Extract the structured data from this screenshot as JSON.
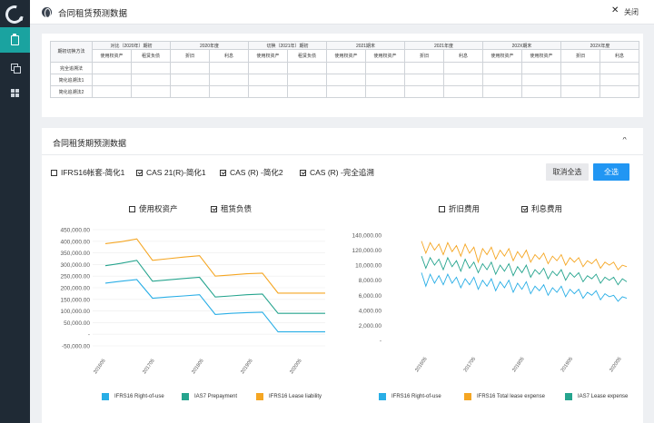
{
  "header": {
    "title": "合同租赁预测数据",
    "close_label": "关闭"
  },
  "sidebar": {
    "items": [
      {
        "icon": "clipboard-icon",
        "active": true
      },
      {
        "icon": "copy-icon"
      },
      {
        "icon": "grid-icon"
      }
    ]
  },
  "table": {
    "corner": "期初切换方法",
    "groups": [
      "对比（2020年）期初",
      "2020年度",
      "切换（2021年）期初",
      "2021期末",
      "2021年度",
      "202X期末",
      "202X年度"
    ],
    "subheaders": [
      "使用权资产",
      "租赁负债",
      "折旧",
      "利息",
      "使用权资产",
      "租赁负债",
      "使用权资产",
      "使用权资产",
      "折旧",
      "利息",
      "使用权资产",
      "使用权资产",
      "折旧",
      "利息"
    ],
    "rows": [
      "完全追溯法",
      "简化追溯法1",
      "简化追溯法2"
    ]
  },
  "section": {
    "title": "合同租赁期预测数据"
  },
  "filters": [
    {
      "label": "IFRS16帐套-简化1",
      "checked": false
    },
    {
      "label": "CAS 21(R)-简化1",
      "checked": true
    },
    {
      "label": "CAS (R) -简化2",
      "checked": true
    },
    {
      "label": "CAS (R) -完全追溯",
      "checked": true
    }
  ],
  "buttons": {
    "cancel_all": "取消全选",
    "select_all": "全选"
  },
  "left_toggles": [
    {
      "label": "使用权资产",
      "checked": false
    },
    {
      "label": "租赁负债",
      "checked": true
    }
  ],
  "right_toggles": [
    {
      "label": "折旧费用",
      "checked": false
    },
    {
      "label": "利息费用",
      "checked": true
    }
  ],
  "chart_data": [
    {
      "type": "line",
      "title": "",
      "yticks": [
        "450,000.00",
        "400,000.00",
        "350,000.00",
        "300,000.00",
        "250,000.00",
        "200,000.00",
        "150,000.00",
        "100,000.00",
        "50,000.00",
        "-",
        "-50,000.00"
      ],
      "ylim": [
        -50000,
        450000
      ],
      "xticks": [
        "201605",
        "201705",
        "201805",
        "201905",
        "202005"
      ],
      "series": [
        {
          "name": "IFRS16 Right-of-use",
          "color": "#29aee6",
          "values": [
            220000,
            228000,
            235000,
            155000,
            160000,
            165000,
            170000,
            85000,
            90000,
            93000,
            95000,
            10000,
            10000,
            10000,
            10000
          ]
        },
        {
          "name": "IAS7 Prepayment",
          "color": "#26a48e",
          "values": [
            295000,
            305000,
            318000,
            228000,
            234000,
            240000,
            245000,
            160000,
            165000,
            170000,
            173000,
            90000,
            90000,
            90000,
            90000
          ]
        },
        {
          "name": "IFRS16 Lease liability",
          "color": "#f5a623",
          "values": [
            390000,
            398000,
            410000,
            318000,
            325000,
            332000,
            338000,
            250000,
            255000,
            260000,
            263000,
            177000,
            177000,
            177000,
            177000
          ]
        }
      ]
    },
    {
      "type": "line",
      "title": "",
      "yticks": [
        "140,000.00",
        "120,000.00",
        "10,000.00",
        "8,000.00",
        "6,000.00",
        "4,000.00",
        "2,000.00",
        "-"
      ],
      "xticks": [
        "201605",
        "201705",
        "201805",
        "201905",
        "202005"
      ],
      "series": [
        {
          "name": "IFRS16 Right-of-use",
          "color": "#29aee6",
          "values": [
            4.5,
            3.6,
            4.4,
            3.8,
            4.3,
            3.7,
            4.4,
            3.8,
            4.2,
            3.5,
            4.1,
            3.7,
            4.2,
            3.4,
            4.0,
            3.6,
            4.1,
            3.3,
            3.9,
            3.5,
            4.0,
            3.2,
            3.8,
            3.4,
            3.9,
            3.1,
            3.6,
            3.3,
            3.7,
            3.0,
            3.5,
            3.2,
            3.6,
            2.9,
            3.4,
            3.1,
            3.4,
            2.8,
            3.2,
            3.0,
            3.3,
            2.7,
            3.1,
            2.9,
            3.0,
            2.6,
            2.9,
            2.8
          ]
        },
        {
          "name": "IFRS16 Total lease expense",
          "color": "#f5a623",
          "values": [
            6.6,
            5.8,
            6.5,
            6.0,
            6.4,
            5.7,
            6.5,
            5.9,
            6.3,
            5.6,
            6.4,
            5.8,
            6.2,
            5.2,
            6.1,
            5.7,
            6.2,
            5.4,
            6.0,
            5.6,
            6.1,
            5.3,
            5.9,
            5.5,
            6.0,
            5.2,
            5.7,
            5.4,
            5.8,
            5.1,
            5.6,
            5.3,
            5.7,
            5.0,
            5.5,
            5.2,
            5.5,
            4.9,
            5.3,
            5.1,
            5.4,
            4.8,
            5.2,
            5.0,
            5.2,
            4.7,
            5.0,
            4.9
          ]
        },
        {
          "name": "IAS7 Lease expense",
          "color": "#26a48e",
          "values": [
            5.6,
            4.8,
            5.5,
            5.0,
            5.4,
            4.7,
            5.5,
            4.9,
            5.3,
            4.6,
            5.4,
            4.8,
            5.2,
            4.5,
            5.1,
            4.7,
            5.2,
            4.4,
            5.0,
            4.6,
            5.1,
            4.3,
            4.9,
            4.5,
            5.0,
            4.2,
            4.7,
            4.4,
            4.8,
            4.1,
            4.6,
            4.3,
            4.7,
            4.0,
            4.5,
            4.2,
            4.5,
            3.9,
            4.3,
            4.1,
            4.4,
            3.8,
            4.2,
            4.0,
            4.2,
            3.7,
            4.1,
            3.9
          ]
        }
      ]
    }
  ]
}
